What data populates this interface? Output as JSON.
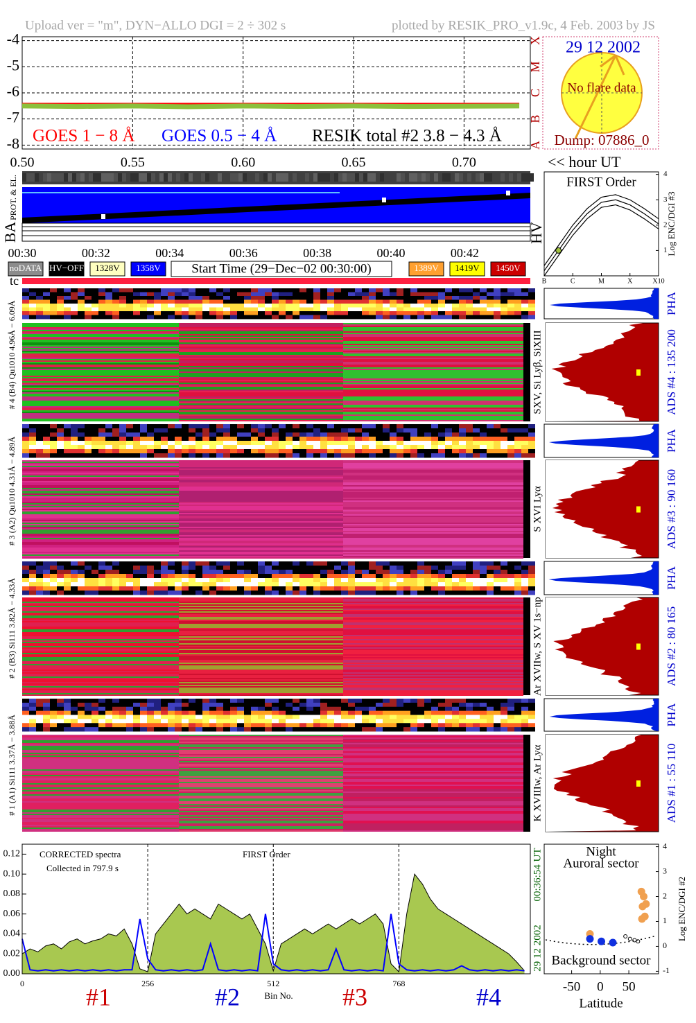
{
  "header": {
    "left": "Upload ver = \"m\", DYN−ALLO DGI =   2 ÷ 302 s",
    "right": "plotted by RESIK_PRO_v1.9c, 4 Feb. 2003 by JS"
  },
  "sun": {
    "date": "29 12 2002",
    "status": "No flare data",
    "dump": "Dump: 07886_0"
  },
  "time_unit": "<< hour UT",
  "strip_labels": {
    "prot": "PROT. & EL.",
    "ba": "BA",
    "hv": "HV",
    "tc": "tc"
  },
  "time_labels": [
    "00:30",
    "00:32",
    "00:34",
    "00:36",
    "00:38",
    "00:40",
    "00:42"
  ],
  "legend_boxes": [
    {
      "label": "noDATA",
      "color": "#8c8c8c",
      "text_color": "#ffffff"
    },
    {
      "label": "HV−OFF",
      "color": "#000000",
      "text_color": "#ffffff"
    },
    {
      "label": "1328V",
      "color": "#ffffc0",
      "text_color": "#000000"
    },
    {
      "label": "1358V",
      "color": "#0000ff",
      "text_color": "#ffffff"
    },
    {
      "label": "1389V",
      "color": "#ffa030",
      "text_color": "#ffffff"
    },
    {
      "label": "1419V",
      "color": "#ffff00",
      "text_color": "#000000"
    },
    {
      "label": "1450V",
      "color": "#cc0000",
      "text_color": "#ffffff"
    }
  ],
  "start_time": "Start Time (29−Dec−02 00:30:00)",
  "channels": [
    {
      "range": "# 4 (B4) Qu1010 4.96Å − 6.09Å",
      "lines": "SXV, Si Lyβ, SiXIII",
      "pha": "PHA",
      "ads": "ADS #4 :   135 200"
    },
    {
      "range": "# 3 (A2) Qu1010 4.31Å − 4.89Å",
      "lines": "S XVI Lyα",
      "pha": "PHA",
      "ads": "ADS #3 :   90 160"
    },
    {
      "range": "# 2 (B3) Si111 3.82Å − 4.33Å",
      "lines": "Ar XVIIw, S XV 1s−np",
      "pha": "PHA",
      "ads": "ADS #2 :   80 165"
    },
    {
      "range": "# 1 (A1) Si111 3.37Å − 3.88Å",
      "lines": "K XVIIIw, Ar Lyα",
      "pha": "PHA",
      "ads": "ADS #1 :   55 110"
    }
  ],
  "chart_data": [
    {
      "type": "line",
      "x": [
        0.5,
        0.525,
        0.55,
        0.575,
        0.6,
        0.625,
        0.65,
        0.675,
        0.7,
        0.725
      ],
      "xlim": [
        0.5,
        0.73
      ],
      "xticks": [
        {
          "value": 0.5,
          "label": "0.50"
        },
        {
          "value": 0.55,
          "label": "0.55"
        },
        {
          "value": 0.6,
          "label": "0.60"
        },
        {
          "value": 0.65,
          "label": "0.65"
        },
        {
          "value": 0.7,
          "label": "0.70"
        }
      ],
      "ylim": [
        -8.15,
        -3.85
      ],
      "yticks": [
        -4,
        -5,
        -6,
        -7,
        -8
      ],
      "grid": true,
      "flare_classes": [
        "X",
        "M",
        "C",
        "B",
        "A"
      ],
      "series": [
        {
          "name": "GOES 1 − 8 Å",
          "color": "#ff0000",
          "values": [
            -6.42,
            -6.42,
            -6.42,
            -6.42,
            -6.42,
            -6.42,
            -6.42,
            -6.42,
            -6.42,
            -6.42
          ]
        },
        {
          "name": "GOES 0.5 − 4 Å",
          "color": "#0000ff",
          "values": [
            null,
            null,
            null,
            null,
            null,
            null,
            null,
            null,
            null,
            null
          ]
        },
        {
          "name": "RESIK total #2  3.8 − 4.3 Å",
          "color": "#000000",
          "fill": "#8cc03c",
          "values": [
            -6.5,
            -6.52,
            -6.5,
            -6.53,
            -6.5,
            -6.52,
            -6.5,
            -6.52,
            -6.51,
            -6.5
          ]
        }
      ]
    },
    {
      "type": "line",
      "title": "FIRST Order",
      "ylabel": "Log ENC/DGI #3",
      "x": [
        0,
        0.5,
        1,
        1.5,
        2,
        2.5,
        3,
        3.5,
        4
      ],
      "xlim": [
        0,
        4
      ],
      "xticks": [
        {
          "value": 0,
          "label": "B"
        },
        {
          "value": 1,
          "label": "C"
        },
        {
          "value": 2,
          "label": "M"
        },
        {
          "value": 3,
          "label": "X"
        },
        {
          "value": 4,
          "label": "X10"
        }
      ],
      "ylim": [
        0,
        4.1
      ],
      "yticks": [
        1,
        2,
        3,
        4
      ],
      "series": [
        {
          "color": "#000000",
          "values": [
            0.4,
            1.2,
            2.0,
            2.65,
            3.1,
            3.2,
            3.0,
            2.65,
            2.25
          ]
        },
        {
          "color": "#000000",
          "values": [
            0.2,
            1.0,
            1.8,
            2.45,
            2.9,
            3.0,
            2.8,
            2.45,
            2.05
          ]
        },
        {
          "color": "#000000",
          "values": [
            0.0,
            0.8,
            1.6,
            2.25,
            2.7,
            2.8,
            2.6,
            2.25,
            1.85
          ]
        }
      ],
      "point": {
        "x": 0.5,
        "y": 1.0,
        "color": "#a0c040"
      }
    },
    {
      "type": "line",
      "annotations": [
        "CORRECTED spectra",
        "Collected in   797.9 s",
        "FIRST Order"
      ],
      "xlabel": "Bin No.",
      "side_labels": [
        "29 12 2002",
        "00:36:54 UT"
      ],
      "x": [
        0,
        16,
        32,
        48,
        64,
        80,
        96,
        112,
        128,
        144,
        160,
        176,
        192,
        208,
        224,
        240,
        256,
        272,
        288,
        304,
        320,
        336,
        352,
        368,
        384,
        400,
        416,
        432,
        448,
        464,
        480,
        496,
        512,
        528,
        544,
        560,
        576,
        592,
        608,
        624,
        640,
        656,
        672,
        688,
        704,
        720,
        736,
        752,
        768,
        784,
        800,
        816,
        832,
        848,
        864,
        880,
        896,
        912,
        928,
        944,
        960,
        976,
        992,
        1008,
        1024
      ],
      "xlim": [
        0,
        1036
      ],
      "xticks": [
        0,
        256,
        512,
        768
      ],
      "ylim": [
        0,
        0.13
      ],
      "yticks": [
        {
          "value": 0,
          "label": "0.00"
        },
        {
          "value": 0.02,
          "label": "0.02"
        },
        {
          "value": 0.04,
          "label": "0.04"
        },
        {
          "value": 0.06,
          "label": "0.06"
        },
        {
          "value": 0.08,
          "label": "0.08"
        },
        {
          "value": 0.1,
          "label": "0.10"
        },
        {
          "value": 0.12,
          "label": "0.12"
        }
      ],
      "detectors": [
        {
          "label": "#1",
          "color": "#cc0000"
        },
        {
          "label": "#2",
          "color": "#0000cc"
        },
        {
          "label": "#3",
          "color": "#cc0000"
        },
        {
          "label": "#4",
          "color": "#0000cc"
        }
      ],
      "series": [
        {
          "color": "#000000",
          "fill": "#a8c850",
          "values": [
            0.02,
            0.025,
            0.022,
            0.028,
            0.03,
            0.025,
            0.032,
            0.035,
            0.03,
            0.033,
            0.035,
            0.04,
            0.038,
            0.045,
            0.03,
            0.005,
            0.002,
            0.04,
            0.05,
            0.06,
            0.07,
            0.06,
            0.065,
            0.06,
            0.055,
            0.07,
            0.065,
            0.06,
            0.055,
            0.06,
            0.045,
            0.03,
            0.003,
            0.03,
            0.035,
            0.04,
            0.045,
            0.04,
            0.045,
            0.05,
            0.045,
            0.05,
            0.055,
            0.05,
            0.055,
            0.06,
            0.05,
            0.01,
            0.002,
            0.06,
            0.1,
            0.09,
            0.075,
            0.065,
            0.06,
            0.055,
            0.05,
            0.045,
            0.04,
            0.035,
            0.03,
            0.025,
            0.02,
            0.012,
            0.003
          ]
        },
        {
          "color": "#0000ff",
          "values": [
            0.035,
            0.004,
            0.003,
            0.004,
            0.003,
            0.004,
            0.003,
            0.004,
            0.003,
            0.004,
            0.003,
            0.004,
            0.003,
            0.004,
            0.004,
            0.055,
            0.015,
            0.004,
            0.003,
            0.004,
            0.003,
            0.004,
            0.003,
            0.004,
            0.03,
            0.004,
            0.003,
            0.004,
            0.003,
            0.004,
            0.003,
            0.06,
            0.01,
            0.004,
            0.003,
            0.004,
            0.003,
            0.004,
            0.003,
            0.004,
            0.025,
            0.004,
            0.003,
            0.004,
            0.003,
            0.004,
            0.003,
            0.06,
            0.01,
            0.004,
            0.003,
            0.004,
            0.003,
            0.004,
            0.003,
            0.004,
            0.008,
            0.004,
            0.003,
            0.004,
            0.003,
            0.004,
            0.003,
            0.004,
            0.003
          ]
        }
      ]
    },
    {
      "type": "scatter",
      "annotations": [
        "Night",
        "Auroral sector",
        "Background sector"
      ],
      "xlabel": "Latitude",
      "ylabel": "Log ENC/DGI #2",
      "xlim": [
        -98,
        102
      ],
      "xticks": [
        -50,
        0,
        50
      ],
      "ylim": [
        -1.1,
        4.1
      ],
      "yticks": [
        -1,
        0,
        1,
        2,
        3,
        4
      ],
      "series": [
        {
          "color": "#f0a050",
          "x": [
            -18,
            72,
            76,
            80,
            74,
            78,
            73
          ],
          "values": [
            0.5,
            2.2,
            2.0,
            1.7,
            1.6,
            1.2,
            1.1
          ]
        },
        {
          "color": "#1030e0",
          "x": [
            -18,
            2,
            22
          ],
          "values": [
            0.3,
            0.2,
            0.15
          ]
        },
        {
          "color": "#000000",
          "open": true,
          "x": [
            44,
            52,
            60,
            66
          ],
          "values": [
            0.4,
            0.3,
            0.25,
            0.2
          ]
        }
      ]
    }
  ]
}
